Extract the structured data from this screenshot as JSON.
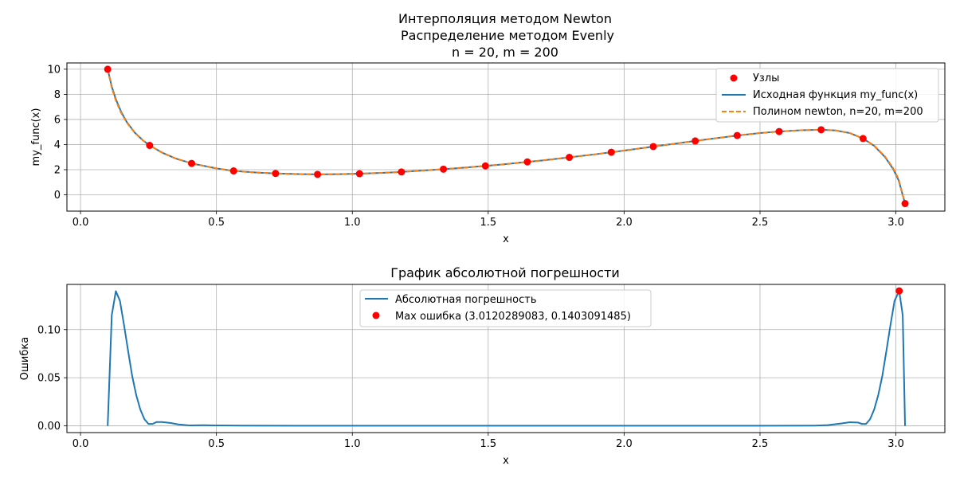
{
  "figure": {
    "top_title_lines": [
      "Интерполяция методом Newton",
      "Распределение методом Evenly",
      "n = 20, m = 200"
    ]
  },
  "chart_data": [
    {
      "type": "line",
      "title": "",
      "xlabel": "x",
      "ylabel": "my_func(x)",
      "xlim": [
        -0.05,
        3.18
      ],
      "ylim": [
        -1.3,
        10.5
      ],
      "xticks": [
        0.0,
        0.5,
        1.0,
        1.5,
        2.0,
        2.5,
        3.0
      ],
      "xtick_labels": [
        "0.0",
        "0.5",
        "1.0",
        "1.5",
        "2.0",
        "2.5",
        "3.0"
      ],
      "yticks": [
        0,
        2,
        4,
        6,
        8,
        10
      ],
      "ytick_labels": [
        "0",
        "2",
        "4",
        "6",
        "8",
        "10"
      ],
      "grid": true,
      "legend_position": "top-right",
      "legend": [
        "Узлы",
        "Исходная функция my_func(x)",
        "Полином newton, n=20, m=200"
      ],
      "nodes": {
        "name": "Узлы",
        "color": "#ff0000",
        "x": [
          0.1,
          0.2544,
          0.4088,
          0.5632,
          0.7176,
          0.872,
          1.0264,
          1.1808,
          1.3352,
          1.4896,
          1.644,
          1.7984,
          1.9528,
          2.1072,
          2.2616,
          2.416,
          2.5704,
          2.7248,
          2.8792,
          3.0336
        ],
        "y": [
          10.0,
          3.93,
          2.5,
          1.9,
          1.7,
          1.63,
          1.68,
          1.82,
          2.04,
          2.3,
          2.62,
          2.98,
          3.39,
          3.84,
          4.29,
          4.72,
          5.04,
          5.18,
          4.48,
          -0.7
        ]
      },
      "series": [
        {
          "name": "Исходная функция my_func(x)",
          "color": "#1f77b4",
          "style": "solid",
          "x": [
            0.1,
            0.115,
            0.13,
            0.15,
            0.17,
            0.2,
            0.23,
            0.2544,
            0.3,
            0.35,
            0.4088,
            0.5,
            0.5632,
            0.65,
            0.7176,
            0.8,
            0.872,
            0.95,
            1.0264,
            1.1,
            1.1808,
            1.25,
            1.3352,
            1.4,
            1.4896,
            1.55,
            1.644,
            1.7,
            1.7984,
            1.9,
            1.9528,
            2.0,
            2.1072,
            2.2,
            2.2616,
            2.35,
            2.416,
            2.5,
            2.5704,
            2.65,
            2.7248,
            2.78,
            2.83,
            2.8792,
            2.92,
            2.96,
            2.99,
            3.01,
            3.0336
          ],
          "y": [
            10.0,
            8.62,
            7.62,
            6.58,
            5.8,
            4.94,
            4.33,
            3.93,
            3.36,
            2.89,
            2.5,
            2.1,
            1.9,
            1.77,
            1.7,
            1.65,
            1.63,
            1.64,
            1.68,
            1.74,
            1.82,
            1.92,
            2.04,
            2.14,
            2.3,
            2.41,
            2.62,
            2.74,
            2.98,
            3.24,
            3.39,
            3.52,
            3.84,
            4.11,
            4.29,
            4.54,
            4.72,
            4.92,
            5.04,
            5.14,
            5.18,
            5.12,
            4.92,
            4.48,
            3.9,
            3.0,
            2.05,
            1.15,
            -0.7
          ]
        },
        {
          "name": "Полином newton, n=20, m=200",
          "color": "#ff7f0e",
          "style": "dashed",
          "x": [
            0.1,
            0.115,
            0.13,
            0.15,
            0.17,
            0.2,
            0.23,
            0.2544,
            0.3,
            0.35,
            0.4088,
            0.5,
            0.5632,
            0.65,
            0.7176,
            0.8,
            0.872,
            0.95,
            1.0264,
            1.1,
            1.1808,
            1.25,
            1.3352,
            1.4,
            1.4896,
            1.55,
            1.644,
            1.7,
            1.7984,
            1.9,
            1.9528,
            2.0,
            2.1072,
            2.2,
            2.2616,
            2.35,
            2.416,
            2.5,
            2.5704,
            2.65,
            2.7248,
            2.78,
            2.83,
            2.8792,
            2.92,
            2.96,
            2.99,
            3.01,
            3.0336
          ],
          "y": [
            10.0,
            8.5,
            7.5,
            6.5,
            5.75,
            4.92,
            4.32,
            3.93,
            3.36,
            2.89,
            2.5,
            2.1,
            1.9,
            1.77,
            1.7,
            1.65,
            1.63,
            1.64,
            1.68,
            1.74,
            1.82,
            1.92,
            2.04,
            2.14,
            2.3,
            2.41,
            2.62,
            2.74,
            2.98,
            3.24,
            3.39,
            3.52,
            3.84,
            4.11,
            4.29,
            4.54,
            4.72,
            4.92,
            5.04,
            5.14,
            5.18,
            5.12,
            4.92,
            4.48,
            3.92,
            3.05,
            2.12,
            1.25,
            -0.7
          ]
        }
      ]
    },
    {
      "type": "line",
      "title": "График абсолютной погрешности",
      "xlabel": "x",
      "ylabel": "Ошибка",
      "xlim": [
        -0.05,
        3.18
      ],
      "ylim": [
        -0.007,
        0.147
      ],
      "xticks": [
        0.0,
        0.5,
        1.0,
        1.5,
        2.0,
        2.5,
        3.0
      ],
      "xtick_labels": [
        "0.0",
        "0.5",
        "1.0",
        "1.5",
        "2.0",
        "2.5",
        "3.0"
      ],
      "yticks": [
        0.0,
        0.05,
        0.1
      ],
      "ytick_labels": [
        "0.00",
        "0.05",
        "0.10"
      ],
      "grid": true,
      "legend_position": "top-center",
      "legend": [
        "Абсолютная погрешность",
        "Max ошибка (3.0120289083, 0.1403091485)"
      ],
      "series": [
        {
          "name": "Абсолютная погрешность",
          "color": "#1f77b4",
          "style": "solid",
          "x": [
            0.1,
            0.115,
            0.13,
            0.145,
            0.16,
            0.175,
            0.19,
            0.205,
            0.22,
            0.235,
            0.25,
            0.265,
            0.28,
            0.3,
            0.33,
            0.36,
            0.4,
            0.45,
            0.5,
            0.6,
            0.8,
            1.0,
            1.5,
            2.0,
            2.5,
            2.7,
            2.75,
            2.8,
            2.83,
            2.86,
            2.875,
            2.89,
            2.905,
            2.92,
            2.935,
            2.95,
            2.965,
            2.98,
            2.995,
            3.0120289083,
            3.025,
            3.0336
          ],
          "y": [
            0.0,
            0.115,
            0.14,
            0.13,
            0.105,
            0.078,
            0.052,
            0.032,
            0.017,
            0.007,
            0.002,
            0.002,
            0.004,
            0.004,
            0.003,
            0.0015,
            0.0005,
            0.0007,
            0.0004,
            0.0002,
            0.0001,
            0.0001,
            0.0001,
            0.0001,
            0.0001,
            0.0002,
            0.0008,
            0.0025,
            0.0038,
            0.0035,
            0.002,
            0.002,
            0.007,
            0.017,
            0.032,
            0.052,
            0.078,
            0.105,
            0.13,
            0.1403091485,
            0.115,
            0.0
          ]
        }
      ],
      "max_point": {
        "name": "Max ошибка (3.0120289083, 0.1403091485)",
        "color": "#ff0000",
        "x": 3.0120289083,
        "y": 0.1403091485
      }
    }
  ]
}
